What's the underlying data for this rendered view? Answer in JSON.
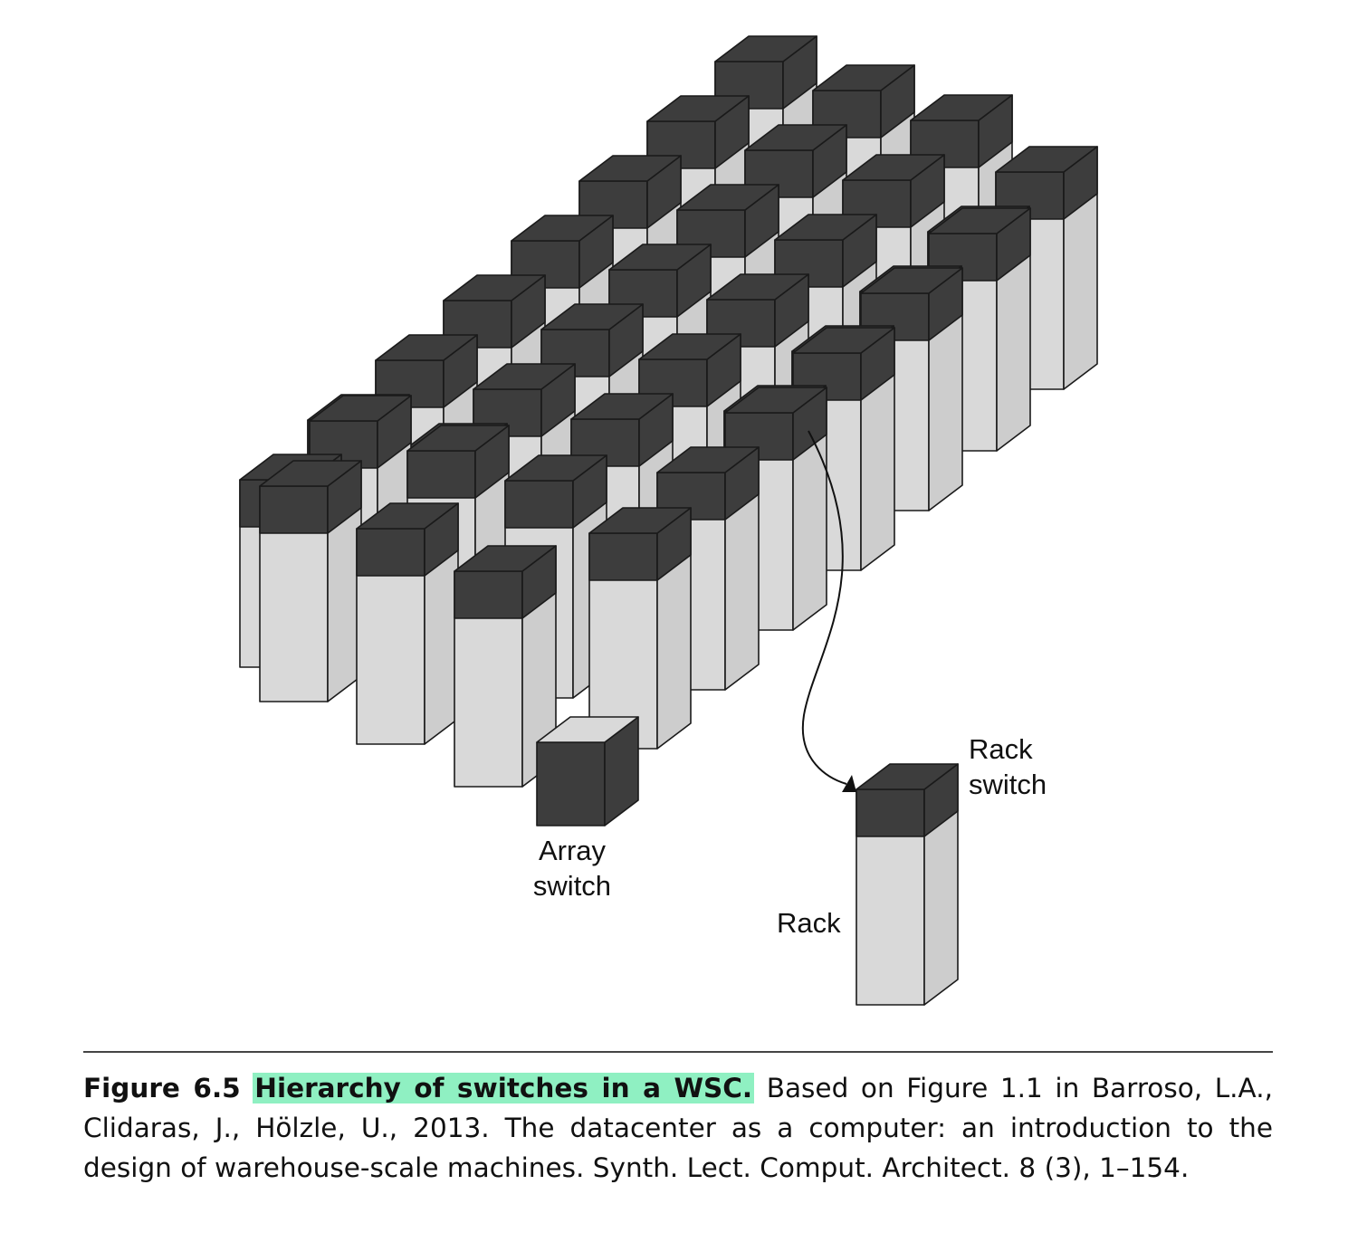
{
  "diagram": {
    "title": "",
    "labels": {
      "array_switch": [
        "Array",
        "switch"
      ],
      "rack_switch": [
        "Rack",
        "switch"
      ],
      "rack": "Rack"
    },
    "colors": {
      "rack_top": "#3d3d3d",
      "rack_body_front": "#d9d9d9",
      "rack_body_side": "#cdcdcd",
      "switch_top": "#d9d9d9",
      "switch_body": "#3d3d3d",
      "outline": "#1a1a1a"
    },
    "grid": {
      "rows": 4,
      "racks_per_row": 8
    }
  },
  "caption": {
    "figure_number": "Figure 6.5",
    "figure_title": "Hierarchy of switches in a WSC.",
    "text": "Based on Figure 1.1 in Barroso, L.A., Clidaras, J., Hölzle, U., 2013. The datacenter as a computer: an introduction to the design of warehouse-scale machines. Synth. Lect. Comput. Architect. 8 (3), 1–154."
  }
}
